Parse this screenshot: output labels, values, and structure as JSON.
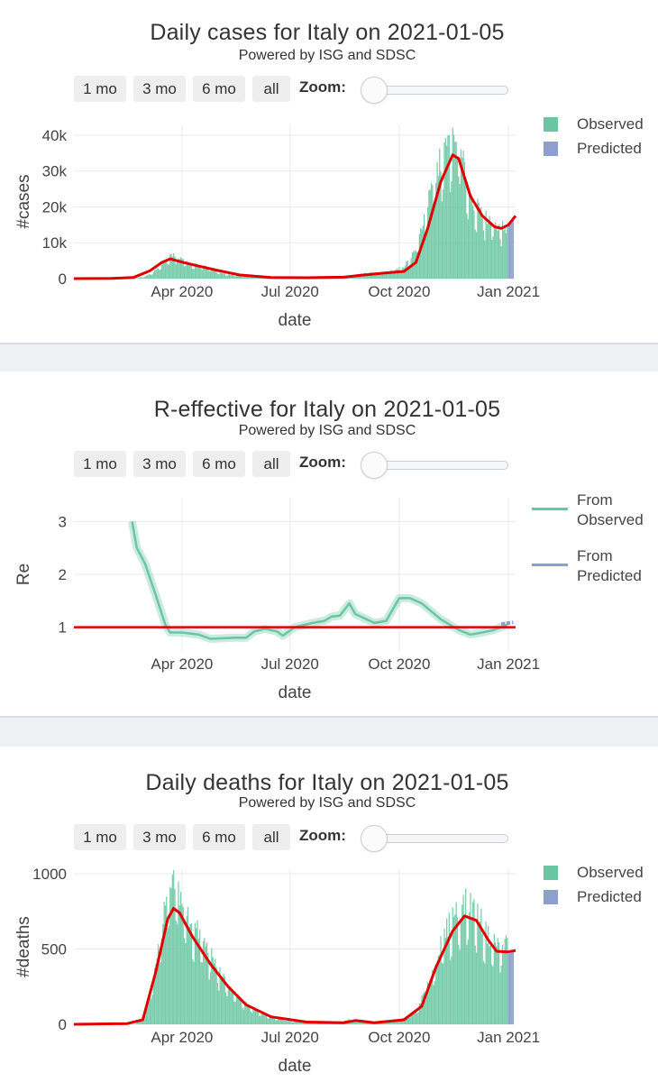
{
  "colors": {
    "observed": "#6ac6a2",
    "predicted": "#8d9fcf",
    "fit": "#e00000",
    "grid": "#e9e9ee"
  },
  "controls": {
    "buttons": [
      "1 mo",
      "3 mo",
      "6 mo",
      "all"
    ],
    "zoom_label": "Zoom:"
  },
  "panels": {
    "cases": {
      "title": "Daily cases for Italy on 2021-01-05",
      "subtitle": "Powered by ISG and SDSC"
    },
    "re": {
      "title": "R-effective for Italy on 2021-01-05",
      "subtitle": "Powered by ISG and SDSC"
    },
    "deaths": {
      "title": "Daily deaths for Italy on 2021-01-05",
      "subtitle": "Powered by ISG and SDSC"
    }
  },
  "chart_data": [
    {
      "id": "cases",
      "type": "bar",
      "title": "Daily cases for Italy on 2021-01-05",
      "subtitle": "Powered by ISG and SDSC",
      "xlabel": "date",
      "ylabel": "#cases",
      "x_ticks": [
        "Apr 2020",
        "Jul 2020",
        "Oct 2020",
        "Jan 2021"
      ],
      "y_ticks": [
        "0",
        "10k",
        "20k",
        "30k",
        "40k"
      ],
      "y_tick_values": [
        0,
        10000,
        20000,
        30000,
        40000
      ],
      "xlim": [
        "2020-01-01",
        "2021-01-07"
      ],
      "ylim": [
        0,
        43000
      ],
      "legend": [
        "Observed",
        "Predicted"
      ],
      "legend_position": "right",
      "observed_range": [
        "2020-02-21",
        "2020-12-31"
      ],
      "predicted_range": [
        "2021-01-01",
        "2021-01-05"
      ],
      "series": [
        {
          "name": "Observed",
          "kind": "bars",
          "anchors": [
            [
              "2020-02-21",
              0
            ],
            [
              "2020-03-01",
              600
            ],
            [
              "2020-03-10",
              2200
            ],
            [
              "2020-03-21",
              6000
            ],
            [
              "2020-03-27",
              6200
            ],
            [
              "2020-04-05",
              4400
            ],
            [
              "2020-04-20",
              3200
            ],
            [
              "2020-05-05",
              1400
            ],
            [
              "2020-05-20",
              700
            ],
            [
              "2020-06-15",
              300
            ],
            [
              "2020-07-15",
              200
            ],
            [
              "2020-08-15",
              500
            ],
            [
              "2020-09-01",
              1400
            ],
            [
              "2020-09-20",
              1700
            ],
            [
              "2020-10-05",
              3200
            ],
            [
              "2020-10-15",
              8000
            ],
            [
              "2020-10-25",
              20000
            ],
            [
              "2020-11-05",
              32000
            ],
            [
              "2020-11-13",
              37000
            ],
            [
              "2020-11-20",
              36000
            ],
            [
              "2020-11-30",
              22000
            ],
            [
              "2020-12-10",
              17000
            ],
            [
              "2020-12-20",
              15000
            ],
            [
              "2020-12-31",
              13000
            ]
          ]
        },
        {
          "name": "Predicted",
          "kind": "bars",
          "anchors": [
            [
              "2021-01-01",
              15500
            ],
            [
              "2021-01-05",
              17000
            ]
          ]
        },
        {
          "name": "fit",
          "kind": "line",
          "points": [
            [
              "2020-01-01",
              0
            ],
            [
              "2020-02-01",
              50
            ],
            [
              "2020-02-20",
              300
            ],
            [
              "2020-03-05",
              2200
            ],
            [
              "2020-03-15",
              4500
            ],
            [
              "2020-03-22",
              5500
            ],
            [
              "2020-04-01",
              4600
            ],
            [
              "2020-04-15",
              3500
            ],
            [
              "2020-05-01",
              2300
            ],
            [
              "2020-05-20",
              1000
            ],
            [
              "2020-06-15",
              300
            ],
            [
              "2020-07-15",
              250
            ],
            [
              "2020-08-15",
              400
            ],
            [
              "2020-09-01",
              1000
            ],
            [
              "2020-09-20",
              1600
            ],
            [
              "2020-10-05",
              2000
            ],
            [
              "2020-10-15",
              4500
            ],
            [
              "2020-10-25",
              14000
            ],
            [
              "2020-11-05",
              27000
            ],
            [
              "2020-11-15",
              34500
            ],
            [
              "2020-11-20",
              33500
            ],
            [
              "2020-11-30",
              23000
            ],
            [
              "2020-12-10",
              17500
            ],
            [
              "2020-12-20",
              14500
            ],
            [
              "2020-12-26",
              14000
            ],
            [
              "2021-01-01",
              15000
            ],
            [
              "2021-01-07",
              17500
            ]
          ]
        }
      ]
    },
    {
      "id": "re",
      "type": "line",
      "title": "R-effective for Italy on 2021-01-05",
      "subtitle": "Powered by ISG and SDSC",
      "xlabel": "date",
      "ylabel": "Re",
      "x_ticks": [
        "Apr 2020",
        "Jul 2020",
        "Oct 2020",
        "Jan 2021"
      ],
      "y_ticks": [
        "1",
        "2",
        "3"
      ],
      "y_tick_values": [
        1,
        2,
        3
      ],
      "xlim": [
        "2020-01-01",
        "2021-01-07"
      ],
      "ylim": [
        0.55,
        3.45
      ],
      "legend": [
        "From Observed",
        "From Predicted"
      ],
      "legend_position": "right",
      "series": [
        {
          "name": "From Observed",
          "points": [
            [
              "2020-02-19",
              3.0
            ],
            [
              "2020-02-23",
              2.5
            ],
            [
              "2020-03-01",
              2.2
            ],
            [
              "2020-03-10",
              1.6
            ],
            [
              "2020-03-18",
              1.05
            ],
            [
              "2020-03-22",
              0.9
            ],
            [
              "2020-04-01",
              0.9
            ],
            [
              "2020-04-15",
              0.86
            ],
            [
              "2020-04-25",
              0.78
            ],
            [
              "2020-05-15",
              0.8
            ],
            [
              "2020-05-25",
              0.8
            ],
            [
              "2020-06-01",
              0.92
            ],
            [
              "2020-06-10",
              0.97
            ],
            [
              "2020-06-20",
              0.92
            ],
            [
              "2020-06-25",
              0.84
            ],
            [
              "2020-07-05",
              1.0
            ],
            [
              "2020-07-20",
              1.08
            ],
            [
              "2020-07-30",
              1.12
            ],
            [
              "2020-08-05",
              1.2
            ],
            [
              "2020-08-12",
              1.22
            ],
            [
              "2020-08-20",
              1.45
            ],
            [
              "2020-08-25",
              1.25
            ],
            [
              "2020-09-10",
              1.08
            ],
            [
              "2020-09-20",
              1.12
            ],
            [
              "2020-10-01",
              1.55
            ],
            [
              "2020-10-10",
              1.55
            ],
            [
              "2020-10-20",
              1.45
            ],
            [
              "2020-11-05",
              1.15
            ],
            [
              "2020-11-20",
              0.95
            ],
            [
              "2020-11-30",
              0.86
            ],
            [
              "2020-12-10",
              0.9
            ],
            [
              "2020-12-20",
              0.95
            ],
            [
              "2020-12-31",
              1.05
            ]
          ]
        },
        {
          "name": "From Predicted",
          "points": [
            [
              "2020-12-26",
              1.06
            ],
            [
              "2021-01-05",
              1.09
            ]
          ]
        },
        {
          "name": "threshold",
          "points": [
            [
              "2020-01-01",
              1
            ],
            [
              "2021-01-07",
              1
            ]
          ]
        }
      ]
    },
    {
      "id": "deaths",
      "type": "bar",
      "title": "Daily deaths for Italy on 2021-01-05",
      "subtitle": "Powered by ISG and SDSC",
      "xlabel": "date",
      "ylabel": "#deaths",
      "x_ticks": [
        "Apr 2020",
        "Jul 2020",
        "Oct 2020",
        "Jan 2021"
      ],
      "y_ticks": [
        "0",
        "500",
        "1000"
      ],
      "y_tick_values": [
        0,
        500,
        1000
      ],
      "xlim": [
        "2020-01-01",
        "2021-01-07"
      ],
      "ylim": [
        0,
        1030
      ],
      "legend": [
        "Observed",
        "Predicted"
      ],
      "legend_position": "right",
      "observed_range": [
        "2020-02-21",
        "2020-12-31"
      ],
      "predicted_range": [
        "2021-01-01",
        "2021-01-05"
      ],
      "series": [
        {
          "name": "Observed",
          "kind": "bars",
          "anchors": [
            [
              "2020-02-21",
              0
            ],
            [
              "2020-03-01",
              50
            ],
            [
              "2020-03-10",
              400
            ],
            [
              "2020-03-20",
              820
            ],
            [
              "2020-03-27",
              900
            ],
            [
              "2020-04-05",
              700
            ],
            [
              "2020-04-20",
              520
            ],
            [
              "2020-05-05",
              300
            ],
            [
              "2020-05-20",
              150
            ],
            [
              "2020-06-10",
              60
            ],
            [
              "2020-07-01",
              20
            ],
            [
              "2020-08-10",
              10
            ],
            [
              "2020-08-20",
              30
            ],
            [
              "2020-09-10",
              15
            ],
            [
              "2020-10-01",
              25
            ],
            [
              "2020-10-15",
              80
            ],
            [
              "2020-10-25",
              250
            ],
            [
              "2020-11-05",
              500
            ],
            [
              "2020-11-15",
              700
            ],
            [
              "2020-11-28",
              780
            ],
            [
              "2020-12-05",
              720
            ],
            [
              "2020-12-15",
              560
            ],
            [
              "2020-12-25",
              500
            ],
            [
              "2020-12-31",
              520
            ]
          ]
        },
        {
          "name": "Predicted",
          "kind": "bars",
          "anchors": [
            [
              "2021-01-01",
              470
            ],
            [
              "2021-01-05",
              480
            ]
          ]
        },
        {
          "name": "fit",
          "kind": "line",
          "points": [
            [
              "2020-01-01",
              0
            ],
            [
              "2020-02-15",
              5
            ],
            [
              "2020-02-28",
              30
            ],
            [
              "2020-03-10",
              350
            ],
            [
              "2020-03-20",
              700
            ],
            [
              "2020-03-25",
              770
            ],
            [
              "2020-03-30",
              740
            ],
            [
              "2020-04-10",
              580
            ],
            [
              "2020-04-25",
              400
            ],
            [
              "2020-05-10",
              250
            ],
            [
              "2020-05-25",
              130
            ],
            [
              "2020-06-15",
              50
            ],
            [
              "2020-07-15",
              15
            ],
            [
              "2020-08-15",
              10
            ],
            [
              "2020-08-25",
              25
            ],
            [
              "2020-09-10",
              10
            ],
            [
              "2020-10-05",
              30
            ],
            [
              "2020-10-20",
              120
            ],
            [
              "2020-11-01",
              380
            ],
            [
              "2020-11-15",
              620
            ],
            [
              "2020-11-25",
              720
            ],
            [
              "2020-12-05",
              690
            ],
            [
              "2020-12-15",
              560
            ],
            [
              "2020-12-22",
              485
            ],
            [
              "2020-12-31",
              480
            ],
            [
              "2021-01-07",
              490
            ]
          ]
        }
      ]
    }
  ]
}
